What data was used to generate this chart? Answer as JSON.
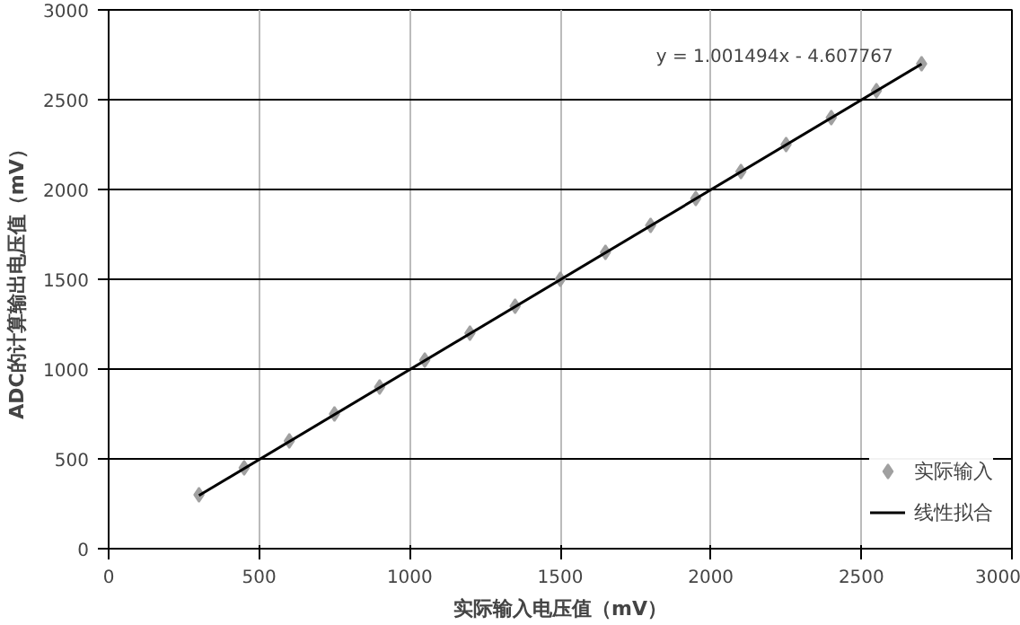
{
  "chart_data": {
    "type": "scatter",
    "xlabel": "实际输入电压值（mV）",
    "ylabel": "ADC的计算输出电压值（mV）",
    "xlim": [
      0,
      3000
    ],
    "ylim": [
      0,
      3000
    ],
    "xticks": [
      0,
      500,
      1000,
      1500,
      2000,
      2500,
      3000
    ],
    "yticks": [
      0,
      500,
      1000,
      1500,
      2000,
      2500,
      3000
    ],
    "grid": true,
    "legend": "bottom right",
    "annotations": [
      "y = 1.001494x  - 4.607767"
    ],
    "series": [
      {
        "name": "实际输入",
        "marker": "diamond",
        "color": "#a0a0a0",
        "x": [
          300,
          450,
          600,
          750,
          900,
          1050,
          1200,
          1350,
          1500,
          1650,
          1800,
          1950,
          2100,
          2250,
          2400,
          2550,
          2700
        ],
        "values": [
          300,
          450,
          600,
          750,
          900,
          1050,
          1200,
          1350,
          1500,
          1650,
          1800,
          1950,
          2100,
          2250,
          2400,
          2550,
          2700
        ]
      },
      {
        "name": "线性拟合",
        "type": "line",
        "color": "#000000",
        "x": [
          300,
          2700
        ],
        "values": [
          296,
          2699
        ]
      }
    ]
  }
}
